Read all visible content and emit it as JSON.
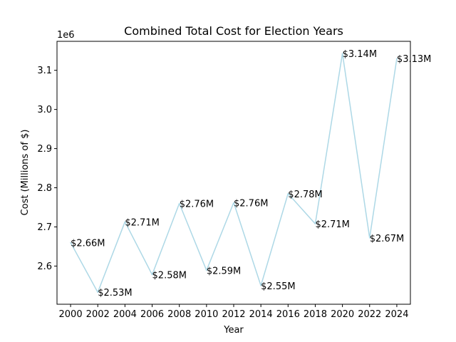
{
  "chart_data": {
    "type": "line",
    "title": "Combined Total Cost for Election Years",
    "xlabel": "Year",
    "ylabel": "Cost (Millions of $)",
    "y_offset_label": "1e6",
    "x": [
      2000,
      2002,
      2004,
      2006,
      2008,
      2010,
      2012,
      2014,
      2016,
      2018,
      2020,
      2022,
      2024
    ],
    "series": [
      {
        "values": [
          2660000,
          2533000,
          2713000,
          2578000,
          2760000,
          2589000,
          2762000,
          2550000,
          2785000,
          2708000,
          3143000,
          2672000,
          3130000
        ],
        "labels": [
          "$2.66M",
          "$2.53M",
          "$2.71M",
          "$2.58M",
          "$2.76M",
          "$2.59M",
          "$2.76M",
          "$2.55M",
          "$2.78M",
          "$2.71M",
          "$3.14M",
          "$2.67M",
          "$3.13M"
        ],
        "color": "#add8e6"
      }
    ],
    "xticks": [
      2000,
      2002,
      2004,
      2006,
      2008,
      2010,
      2012,
      2014,
      2016,
      2018,
      2020,
      2022,
      2024
    ],
    "yticks": [
      2600000,
      2700000,
      2800000,
      2900000,
      3000000,
      3100000
    ],
    "ytick_labels": [
      "2.6",
      "2.7",
      "2.8",
      "2.9",
      "3.0",
      "3.1"
    ],
    "xlim": [
      1999,
      2025
    ],
    "ylim": [
      2502500,
      3174000
    ],
    "grid": false,
    "legend": "none"
  }
}
